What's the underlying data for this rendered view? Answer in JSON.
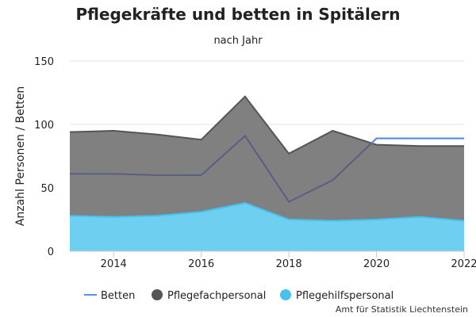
{
  "chart_data": {
    "type": "area",
    "title": "Pflegekräfte und betten in Spitälern",
    "subtitle": "nach Jahr",
    "ylabel": "Anzahl Personen / Betten",
    "xlabel": "",
    "x": [
      2013,
      2014,
      2015,
      2016,
      2017,
      2018,
      2019,
      2020,
      2021,
      2022
    ],
    "xlim": [
      2013,
      2022
    ],
    "ylim": [
      0,
      150
    ],
    "xticks": [
      "2014",
      "2016",
      "2018",
      "2020",
      "2022"
    ],
    "yticks": [
      "0",
      "50",
      "100",
      "150"
    ],
    "grid": true,
    "legend_position": "bottom",
    "series": [
      {
        "name": "Pflegehilfspersonal",
        "kind": "area",
        "color": "#6ecff0",
        "stroke": "#45c2ee",
        "values": [
          28,
          27,
          28,
          31,
          38,
          25,
          24,
          25,
          27,
          24
        ]
      },
      {
        "name": "Pflegefachpersonal",
        "kind": "area",
        "color": "#808080",
        "stroke": "#555555",
        "values": [
          94,
          95,
          92,
          88,
          122,
          77,
          95,
          84,
          83,
          83
        ]
      },
      {
        "name": "Betten",
        "kind": "line",
        "color": "#5b8ee6",
        "stroke_in_area": "#5a5f80",
        "values": [
          61,
          61,
          60,
          60,
          91,
          39,
          56,
          89,
          89,
          89
        ]
      }
    ],
    "credit": "Amt für Statistik Liechtenstein"
  }
}
